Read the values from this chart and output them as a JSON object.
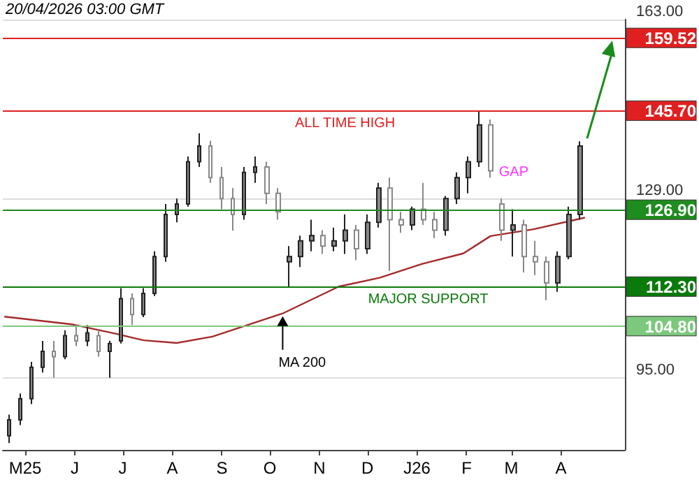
{
  "chart_data": {
    "type": "candlestick",
    "xlim": [
      "2025-04-17",
      "2026-05-11"
    ],
    "xticks": [
      {
        "value": "2025-05-01",
        "label": "M25"
      },
      {
        "value": "2025-06-01",
        "label": "J"
      },
      {
        "value": "2025-07-01",
        "label": "J"
      },
      {
        "value": "2025-08-01",
        "label": "A"
      },
      {
        "value": "2025-09-01",
        "label": "S"
      },
      {
        "value": "2025-10-01",
        "label": "O"
      },
      {
        "value": "2025-11-01",
        "label": "N"
      },
      {
        "value": "2025-12-01",
        "label": "D"
      },
      {
        "value": "2026-01-01",
        "label": "J26"
      },
      {
        "value": "2026-02-01",
        "label": "F"
      },
      {
        "value": "2026-03-01",
        "label": "M"
      },
      {
        "value": "2026-04-01",
        "label": "A"
      }
    ],
    "ylim": [
      81.3,
      163
    ],
    "yticks": [
      {
        "value": 95,
        "label": "95.00"
      },
      {
        "value": 129,
        "label": "129.00"
      },
      {
        "value": 163,
        "label": "163.00"
      }
    ],
    "grid": "y",
    "series": [
      {
        "color": "#888888",
        "x": [
          "2025-04-21",
          "2025-04-28",
          "2025-05-05",
          "2025-05-12",
          "2025-05-19",
          "2025-05-26",
          "2025-06-02",
          "2025-06-09",
          "2025-06-16",
          "2025-06-23",
          "2025-06-30",
          "2025-07-07",
          "2025-07-14",
          "2025-07-21",
          "2025-07-28",
          "2025-08-04",
          "2025-08-11",
          "2025-08-18",
          "2025-08-25",
          "2025-09-01",
          "2025-09-08",
          "2025-09-15",
          "2025-09-22",
          "2025-09-29",
          "2025-10-06",
          "2025-10-13",
          "2025-10-20",
          "2025-10-27",
          "2025-11-03",
          "2025-11-10",
          "2025-11-17",
          "2025-11-24",
          "2025-12-01",
          "2025-12-08",
          "2025-12-15",
          "2025-12-22",
          "2025-12-29",
          "2026-01-05",
          "2026-01-12",
          "2026-01-19",
          "2026-01-26",
          "2026-02-02",
          "2026-02-09",
          "2026-02-16",
          "2026-02-23",
          "2026-03-02",
          "2026-03-09",
          "2026-03-16",
          "2026-03-23",
          "2026-03-30",
          "2026-04-06",
          "2026-04-13"
        ],
        "ohlc": [
          [
            84,
            88,
            82.6,
            87
          ],
          [
            87,
            92,
            86,
            91
          ],
          [
            91,
            98,
            90,
            97
          ],
          [
            97,
            102,
            96,
            100
          ],
          [
            100,
            102,
            95,
            99
          ],
          [
            99,
            104,
            98.5,
            103
          ],
          [
            103,
            105,
            101,
            102
          ],
          [
            102,
            105,
            101,
            103.5
          ],
          [
            103,
            104,
            99,
            100
          ],
          [
            100,
            102,
            95,
            101.5
          ],
          [
            102,
            112,
            101.5,
            110
          ],
          [
            110,
            111,
            105,
            107
          ],
          [
            107,
            112,
            106.5,
            111
          ],
          [
            111,
            119,
            110.5,
            118
          ],
          [
            118,
            128,
            117,
            126
          ],
          [
            126,
            129,
            124.5,
            128
          ],
          [
            128,
            137,
            127.5,
            136
          ],
          [
            136,
            141.4,
            135,
            139
          ],
          [
            139,
            140,
            132,
            133
          ],
          [
            133,
            135,
            127,
            129
          ],
          [
            129,
            131,
            122.9,
            126
          ],
          [
            126,
            135,
            125,
            134
          ],
          [
            134,
            137,
            132,
            135
          ],
          [
            135,
            136,
            128,
            130
          ],
          [
            130,
            131,
            125,
            126.5
          ],
          [
            117,
            120,
            112.3,
            118
          ],
          [
            118,
            122,
            116,
            121
          ],
          [
            121,
            125,
            119,
            122
          ],
          [
            122,
            123,
            118.5,
            120
          ],
          [
            120,
            123.5,
            119,
            121
          ],
          [
            121,
            126,
            118.5,
            123
          ],
          [
            123,
            124,
            117.3,
            119.5
          ],
          [
            119.5,
            126,
            118.5,
            124.5
          ],
          [
            124.5,
            132,
            123.5,
            131
          ],
          [
            131,
            133,
            115.3,
            125
          ],
          [
            125,
            126.5,
            122.5,
            124
          ],
          [
            124,
            127.5,
            123,
            127
          ],
          [
            127,
            132,
            124,
            125
          ],
          [
            125,
            126.5,
            121.5,
            123
          ],
          [
            123,
            129.5,
            122,
            129
          ],
          [
            129,
            134,
            128,
            133
          ],
          [
            133,
            137,
            130,
            136
          ],
          [
            136,
            145.7,
            135,
            143
          ],
          [
            143,
            144,
            133,
            134.3
          ],
          [
            128,
            129,
            121,
            123
          ],
          [
            123,
            127,
            118,
            124
          ],
          [
            124,
            125,
            115,
            118
          ],
          [
            118,
            121,
            114.5,
            117
          ],
          [
            117,
            118,
            109.7,
            113
          ],
          [
            113,
            119,
            111.3,
            118
          ],
          [
            118,
            127.5,
            117.5,
            126
          ],
          [
            126,
            139.9,
            125,
            139
          ]
        ]
      },
      {
        "type": "line",
        "color": "#a52a2a",
        "x": [
          "2025-04-18",
          "2025-05-31",
          "2025-06-26",
          "2025-07-14",
          "2025-08-04",
          "2025-08-26",
          "2025-10-09",
          "2025-11-13",
          "2025-12-09",
          "2026-01-04",
          "2026-01-30",
          "2026-02-16",
          "2026-03-15",
          "2026-04-16"
        ],
        "values": [
          106.6,
          105.1,
          103.4,
          102.1,
          101.6,
          102.8,
          107.2,
          112.3,
          114,
          116.6,
          118.6,
          121.9,
          123.2,
          125.4
        ]
      }
    ],
    "ref_lines": [
      {
        "axis": "y",
        "value": 159.52,
        "label": "159.52",
        "color": "#e02020"
      },
      {
        "axis": "y",
        "value": 145.7,
        "label": "145.70",
        "color": "#e02020"
      },
      {
        "axis": "y",
        "value": 126.9,
        "label": "126.90",
        "color": "#1e8c1e"
      },
      {
        "axis": "y",
        "value": 112.3,
        "label": "112.30",
        "color": "#0a7a0a"
      },
      {
        "axis": "y",
        "value": 104.8,
        "label": "104.80",
        "color": "#7cc87c"
      }
    ],
    "annotations": [
      {
        "text": "MA 200",
        "x": "2025-10-09",
        "y": 107.2
      },
      {
        "text": "GAP",
        "x": "2026-02-16",
        "y": 134.3
      },
      {
        "text": "ALL TIME HIGH",
        "x": "2025-11-17",
        "y": 145.7
      },
      {
        "text": "MAJOR SUPPORT",
        "x": "2026-01-08",
        "y": 112.3
      },
      "20/04/2026 03:00 GMT"
    ]
  }
}
